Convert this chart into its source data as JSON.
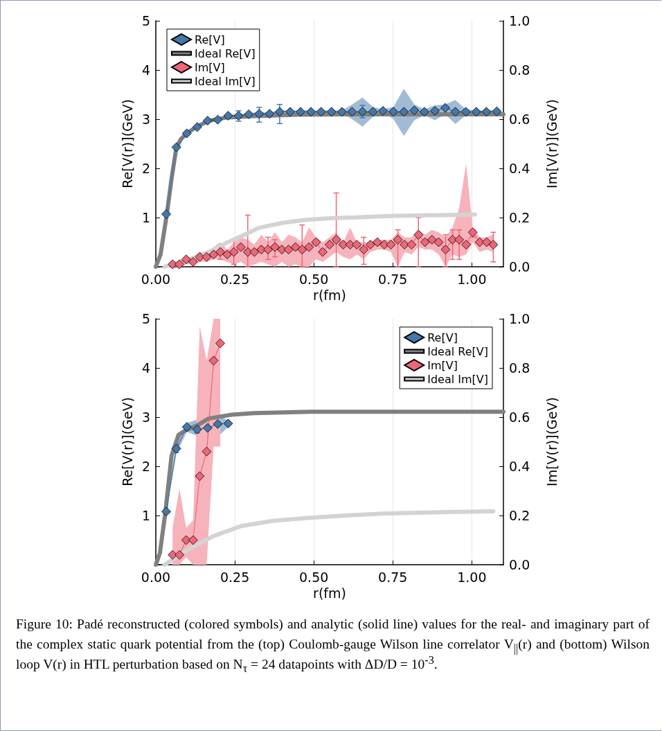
{
  "chart_data": [
    {
      "type": "line",
      "xlabel": "r(fm)",
      "ylabel": "Re[V(r)](GeV)",
      "y2label": "Im[V(r)](GeV)",
      "xlim": [
        0,
        1.1
      ],
      "xticks": [
        {
          "value": 0,
          "label": "0.00"
        },
        {
          "value": 0.25,
          "label": "0.25"
        },
        {
          "value": 0.5,
          "label": "0.50"
        },
        {
          "value": 0.75,
          "label": "0.75"
        },
        {
          "value": 1,
          "label": "1.00"
        }
      ],
      "ylim": [
        0,
        5
      ],
      "yticks": [
        {
          "value": 0,
          "label": null
        },
        1,
        2,
        3,
        4,
        5
      ],
      "y2lim": [
        0,
        1
      ],
      "y2ticks": [
        {
          "value": 0,
          "label": "0.0"
        },
        {
          "value": 0.2,
          "label": "0.2"
        },
        {
          "value": 0.4,
          "label": "0.4"
        },
        {
          "value": 0.6,
          "label": "0.6"
        },
        {
          "value": 0.8,
          "label": "0.8"
        },
        {
          "value": 1,
          "label": "1.0"
        }
      ],
      "grid": "x",
      "legend": "top left",
      "series": [
        {
          "name": "Re[V]",
          "marker": "diamond",
          "color": "#4477aa",
          "x": [
            0.033,
            0.065,
            0.098,
            0.131,
            0.164,
            0.196,
            0.229,
            0.262,
            0.294,
            0.327,
            0.36,
            0.392,
            0.425,
            0.458,
            0.491,
            0.523,
            0.556,
            0.589,
            0.621,
            0.654,
            0.687,
            0.719,
            0.752,
            0.785,
            0.818,
            0.85,
            0.883,
            0.916,
            0.948,
            0.981,
            1.014,
            1.046,
            1.079
          ],
          "values": [
            1.07,
            2.43,
            2.71,
            2.84,
            2.97,
            2.99,
            3.07,
            3.07,
            3.1,
            3.11,
            3.11,
            3.15,
            3.15,
            3.15,
            3.15,
            3.15,
            3.15,
            3.15,
            3.15,
            3.15,
            3.15,
            3.17,
            3.15,
            3.15,
            3.18,
            3.15,
            3.17,
            3.23,
            3.15,
            3.15,
            3.15,
            3.15,
            3.16
          ],
          "lower": [
            1.04,
            2.4,
            2.68,
            2.81,
            2.94,
            2.96,
            3.04,
            3.04,
            3.07,
            3.08,
            3.08,
            3.12,
            3.12,
            3.12,
            3.12,
            3.12,
            3.12,
            3.12,
            3.0,
            2.85,
            3.05,
            3.14,
            3.0,
            2.66,
            2.98,
            3.08,
            2.98,
            3.1,
            2.9,
            3.08,
            3.12,
            3.12,
            3.13
          ],
          "upper": [
            1.1,
            2.46,
            2.74,
            2.87,
            3.0,
            3.02,
            3.1,
            3.1,
            3.13,
            3.14,
            3.14,
            3.18,
            3.18,
            3.18,
            3.18,
            3.18,
            3.18,
            3.18,
            3.3,
            3.44,
            3.25,
            3.2,
            3.25,
            3.62,
            3.3,
            3.2,
            3.28,
            3.3,
            3.39,
            3.2,
            3.18,
            3.18,
            3.19
          ],
          "errors": [
            null,
            null,
            null,
            null,
            null,
            null,
            null,
            [
              2.96,
              3.17
            ],
            null,
            [
              2.94,
              3.24
            ],
            null,
            [
              2.91,
              3.3
            ],
            null,
            null,
            null,
            null,
            null,
            null,
            null,
            [
              3.03,
              3.28
            ],
            null,
            null,
            null,
            null,
            null,
            null,
            null,
            null,
            null,
            null,
            null,
            null,
            null
          ]
        },
        {
          "name": "Ideal Re[V]",
          "marker": "none",
          "color": "#808080",
          "x": [
            0,
            0.015,
            0.035,
            0.05,
            0.065,
            0.08,
            0.1,
            0.13,
            0.17,
            0.22,
            0.3,
            0.45,
            0.6,
            1.1
          ],
          "values": [
            0,
            0.25,
            1.07,
            1.8,
            2.42,
            2.6,
            2.72,
            2.85,
            2.97,
            3.03,
            3.06,
            3.09,
            3.1,
            3.1
          ]
        },
        {
          "name": "Im[V]",
          "marker": "diamond",
          "color": "#ee6677",
          "axis": "y2",
          "x": [
            0.053,
            0.075,
            0.096,
            0.118,
            0.139,
            0.161,
            0.183,
            0.204,
            0.226,
            0.247,
            0.269,
            0.291,
            0.312,
            0.334,
            0.355,
            0.377,
            0.399,
            0.42,
            0.442,
            0.463,
            0.485,
            0.507,
            0.528,
            0.55,
            0.571,
            0.593,
            0.615,
            0.636,
            0.658,
            0.679,
            0.701,
            0.723,
            0.744,
            0.766,
            0.787,
            0.809,
            0.831,
            0.852,
            0.874,
            0.895,
            0.917,
            0.939,
            0.96,
            0.982,
            1.003,
            1.025,
            1.047,
            1.068
          ],
          "values": [
            0.01,
            0.01,
            0.03,
            0.02,
            0.04,
            0.04,
            0.05,
            0.06,
            0.05,
            0.06,
            0.08,
            0.06,
            0.06,
            0.07,
            0.07,
            0.08,
            0.07,
            0.07,
            0.08,
            0.07,
            0.08,
            0.1,
            0.06,
            0.09,
            0.11,
            0.09,
            0.09,
            0.09,
            0.07,
            0.09,
            0.1,
            0.09,
            0.09,
            0.11,
            0.09,
            0.09,
            0.13,
            0.1,
            0.11,
            0.1,
            0.07,
            0.11,
            0.11,
            0.09,
            0.14,
            0.1,
            0.1,
            0.09
          ],
          "lower": [
            0,
            0,
            0.01,
            0.01,
            0.02,
            0.02,
            0.03,
            0.03,
            0.02,
            0.01,
            0.02,
            0,
            0.01,
            0.02,
            0.01,
            0,
            0.02,
            0,
            0.01,
            0,
            0,
            0.03,
            0.02,
            0.04,
            0.06,
            0.04,
            0.03,
            0.05,
            0.03,
            0.06,
            0.07,
            0.07,
            0.06,
            0,
            0.06,
            0.05,
            0.08,
            0.07,
            0.07,
            0.05,
            0,
            0.05,
            0.04,
            0.05,
            0.1,
            0.06,
            0.07,
            0.06
          ],
          "upper": [
            0.01,
            0.02,
            0.04,
            0.04,
            0.06,
            0.06,
            0.08,
            0.1,
            0.07,
            0.1,
            0.12,
            0.11,
            0.09,
            0.13,
            0.1,
            0.14,
            0.1,
            0.13,
            0.12,
            0.1,
            0.16,
            0.12,
            0.1,
            0.12,
            0.14,
            0.1,
            0.16,
            0.1,
            0.1,
            0.1,
            0.11,
            0.11,
            0.11,
            0.14,
            0.12,
            0.12,
            0.15,
            0.13,
            0.15,
            0.14,
            0.12,
            0.16,
            0.24,
            0.42,
            0.16,
            0.12,
            0.12,
            0.13
          ],
          "errors": [
            null,
            null,
            null,
            null,
            null,
            null,
            null,
            [
              0.03,
              0.08
            ],
            null,
            [
              0.01,
              0.11
            ],
            null,
            [
              0,
              0.21
            ],
            null,
            null,
            [
              0.03,
              0.12
            ],
            [
              0.04,
              0.11
            ],
            null,
            null,
            null,
            [
              0,
              0.17
            ],
            null,
            null,
            null,
            null,
            [
              0,
              0.3
            ],
            null,
            null,
            null,
            [
              0.01,
              0.12
            ],
            null,
            null,
            null,
            null,
            [
              0,
              0.15
            ],
            null,
            null,
            [
              0,
              0.2
            ],
            null,
            null,
            null,
            [
              0,
              0.13
            ],
            [
              0.03,
              0.15
            ],
            [
              0.03,
              0.15
            ],
            null,
            [
              0.12,
              0.15
            ],
            null,
            null,
            [
              0.02,
              0.14
            ]
          ]
        },
        {
          "name": "Ideal Im[V]",
          "marker": "none",
          "color": "#d3d3d3",
          "axis": "y2",
          "x": [
            0.028,
            0.05,
            0.091,
            0.14,
            0.181,
            0.22,
            0.27,
            0.326,
            0.4,
            0.47,
            0.55,
            0.615,
            0.7,
            0.76,
            0.85,
            0.91,
            1.01
          ],
          "values": [
            0,
            0.01,
            0.026,
            0.045,
            0.068,
            0.095,
            0.124,
            0.158,
            0.178,
            0.19,
            0.197,
            0.2,
            0.204,
            0.207,
            0.209,
            0.21,
            0.213
          ]
        }
      ]
    },
    {
      "type": "line",
      "xlabel": "r(fm)",
      "ylabel": "Re[V(r)](GeV)",
      "y2label": "Im[V(r)](GeV)",
      "xlim": [
        0,
        1.1
      ],
      "xticks": [
        {
          "value": 0,
          "label": "0.00"
        },
        {
          "value": 0.25,
          "label": "0.25"
        },
        {
          "value": 0.5,
          "label": "0.50"
        },
        {
          "value": 0.75,
          "label": "0.75"
        },
        {
          "value": 1,
          "label": "1.00"
        }
      ],
      "ylim": [
        0,
        5
      ],
      "yticks": [
        {
          "value": 0,
          "label": null
        },
        1,
        2,
        3,
        4,
        5
      ],
      "y2lim": [
        0,
        1
      ],
      "y2ticks": [
        {
          "value": 0,
          "label": "0.0"
        },
        {
          "value": 0.2,
          "label": "0.2"
        },
        {
          "value": 0.4,
          "label": "0.4"
        },
        {
          "value": 0.6,
          "label": "0.6"
        },
        {
          "value": 0.8,
          "label": "0.8"
        },
        {
          "value": 1,
          "label": "1.0"
        }
      ],
      "grid": "x",
      "legend": "top right",
      "series": [
        {
          "name": "Re[V]",
          "marker": "diamond",
          "color": "#4477aa",
          "x": [
            0.033,
            0.065,
            0.098,
            0.131,
            0.164,
            0.196,
            0.229
          ],
          "values": [
            1.08,
            2.36,
            2.8,
            2.75,
            2.78,
            2.86,
            2.87
          ],
          "lower": [
            1.05,
            2.25,
            2.7,
            2.62,
            2.36,
            2.6,
            2.8
          ],
          "upper": [
            1.11,
            2.5,
            2.88,
            2.95,
            3.4,
            3.05,
            2.93
          ],
          "errors": [
            null,
            [
              2.28,
              2.45
            ],
            null,
            [
              2.68,
              2.82
            ],
            null,
            null,
            null
          ]
        },
        {
          "name": "Ideal Re[V]",
          "marker": "none",
          "color": "#808080",
          "x": [
            0,
            0.013,
            0.03,
            0.05,
            0.072,
            0.094,
            0.13,
            0.167,
            0.24,
            0.31,
            0.49,
            1.1
          ],
          "values": [
            0,
            0.24,
            1.05,
            2.22,
            2.64,
            2.73,
            2.83,
            2.97,
            3.05,
            3.08,
            3.11,
            3.11
          ]
        },
        {
          "name": "Im[V]",
          "marker": "diamond",
          "color": "#ee6677",
          "axis": "y2",
          "x": [
            0.053,
            0.075,
            0.096,
            0.118,
            0.139,
            0.161,
            0.183,
            0.204
          ],
          "values": [
            0.04,
            0.04,
            0.1,
            0.1,
            0.36,
            0.46,
            0.83,
            0.9
          ],
          "lower": [
            0,
            0,
            0.03,
            0,
            0,
            0,
            0.48,
            0.48
          ],
          "upper": [
            0.15,
            0.31,
            0.15,
            0.18,
            0.97,
            0.83,
            1,
            1
          ]
        },
        {
          "name": "Ideal Im[V]",
          "marker": "none",
          "color": "#d3d3d3",
          "axis": "y2",
          "x": [
            0.028,
            0.091,
            0.18,
            0.27,
            0.37,
            0.48,
            0.6,
            0.72,
            0.85,
            0.95,
            1.068
          ],
          "values": [
            0,
            0.054,
            0.115,
            0.157,
            0.178,
            0.19,
            0.2,
            0.208,
            0.212,
            0.215,
            0.217
          ]
        }
      ],
      "annotations": [
        "Figure 10: Padé reconstructed (colored symbols) and analytic (solid line) values for the real- and imaginary part of the complex static quark potential from the (top) Coulomb-gauge Wilson line correlator V$_{||}$(r) and (bottom) Wilson loop V(r) in HTL perturbation based on N$_{τ}$ = 24 datapoints with ΔD/D = 10$^{-3}$."
      ]
    }
  ]
}
